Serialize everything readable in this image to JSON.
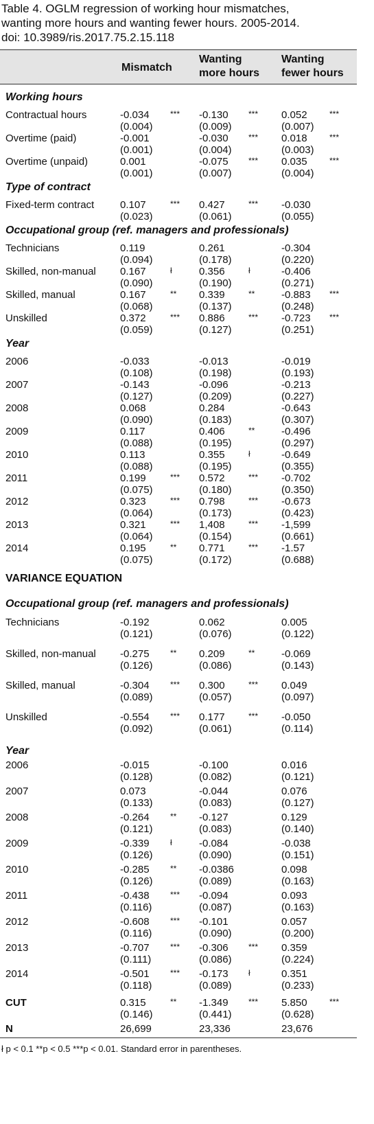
{
  "title": [
    "Table 4. OGLM regression of working hour mismatches,",
    "wanting more hours and wanting fewer hours. 2005-2014.",
    "doi: 10.3989/ris.2017.75.2.15.118"
  ],
  "columns": [
    [
      "Mismatch"
    ],
    [
      "Wanting",
      "more hours"
    ],
    [
      "Wanting",
      "fewer hours"
    ]
  ],
  "main": [
    {
      "heading": "Working hours",
      "rows": [
        {
          "label": "Contractual hours",
          "cells": [
            {
              "coef": "-0.034",
              "stars": "***",
              "se": "(0.004)"
            },
            {
              "coef": "-0.130",
              "stars": "***",
              "se": "(0.009)"
            },
            {
              "coef": "0.052",
              "stars": "***",
              "se": "(0.007)"
            }
          ]
        },
        {
          "label": "Overtime (paid)",
          "cells": [
            {
              "coef": "-0.001",
              "se": "(0.001)"
            },
            {
              "coef": "-0.030",
              "stars": "***",
              "se": "(0.004)"
            },
            {
              "coef": "0.018",
              "stars": "***",
              "se": "(0.003)"
            }
          ]
        },
        {
          "label": "Overtime (unpaid)",
          "cells": [
            {
              "coef": "0.001",
              "se": "(0.001)"
            },
            {
              "coef": "-0.075",
              "stars": "***",
              "se": "(0.007)"
            },
            {
              "coef": "0.035",
              "stars": "***",
              "se": "(0.004)"
            }
          ]
        }
      ]
    },
    {
      "heading": "Type of contract",
      "rows": [
        {
          "label": "Fixed-term contract",
          "cells": [
            {
              "coef": "0.107",
              "stars": "***",
              "se": "(0.023)"
            },
            {
              "coef": "0.427",
              "stars": "***",
              "se": "(0.061)"
            },
            {
              "coef": "-0.030",
              "se": "(0.055)"
            }
          ]
        }
      ]
    },
    {
      "heading": "Occupational group (ref. managers and professionals)",
      "rows": [
        {
          "label": "Technicians",
          "cells": [
            {
              "coef": "0.119",
              "se": "(0.094)"
            },
            {
              "coef": "0.261",
              "se": "(0.178)"
            },
            {
              "coef": "-0.304",
              "se": "(0.220)"
            }
          ]
        },
        {
          "label": "Skilled, non-manual",
          "cells": [
            {
              "coef": "0.167",
              "stars": "ł",
              "se": "(0.090)"
            },
            {
              "coef": "0.356",
              "stars": "ł",
              "se": "(0.190)"
            },
            {
              "coef": "-0.406",
              "se": "(0.271)"
            }
          ]
        },
        {
          "label": "Skilled, manual",
          "cells": [
            {
              "coef": "0.167",
              "stars": "**",
              "se": "(0.068)"
            },
            {
              "coef": "0.339",
              "stars": "**",
              "se": "(0.137)"
            },
            {
              "coef": "-0.883",
              "stars": "***",
              "se": "(0.248)"
            }
          ]
        },
        {
          "label": "Unskilled",
          "cells": [
            {
              "coef": "0.372",
              "stars": "***",
              "se": "(0.059)"
            },
            {
              "coef": "0.886",
              "stars": "***",
              "se": "(0.127)"
            },
            {
              "coef": "-0.723",
              "stars": "***",
              "se": "(0.251)"
            }
          ]
        }
      ]
    },
    {
      "heading": "Year",
      "rows": [
        {
          "label": "2006",
          "cells": [
            {
              "coef": "-0.033",
              "se": "(0.108)"
            },
            {
              "coef": "-0.013",
              "se": "(0.198)"
            },
            {
              "coef": "-0.019",
              "se": "(0.193)"
            }
          ]
        },
        {
          "label": "2007",
          "cells": [
            {
              "coef": "-0.143",
              "se": "(0.127)"
            },
            {
              "coef": "-0.096",
              "se": "(0.209)"
            },
            {
              "coef": "-0.213",
              "se": "(0.227)"
            }
          ]
        },
        {
          "label": "2008",
          "cells": [
            {
              "coef": "0.068",
              "se": "(0.090)"
            },
            {
              "coef": "0.284",
              "se": "(0.183)"
            },
            {
              "coef": "-0.643",
              "se": "(0.307)"
            }
          ]
        },
        {
          "label": "2009",
          "cells": [
            {
              "coef": "0.117",
              "se": "(0.088)"
            },
            {
              "coef": "0.406",
              "stars": "**",
              "se": "(0.195)"
            },
            {
              "coef": "-0.496",
              "se": "(0.297)"
            }
          ]
        },
        {
          "label": "2010",
          "cells": [
            {
              "coef": "0.113",
              "se": "(0.088)"
            },
            {
              "coef": "0.355",
              "stars": "ł",
              "se": "(0.195)"
            },
            {
              "coef": "-0.649",
              "se": "(0.355)"
            }
          ]
        },
        {
          "label": "2011",
          "cells": [
            {
              "coef": "0.199",
              "stars": "***",
              "se": "(0.075)"
            },
            {
              "coef": "0.572",
              "stars": "***",
              "se": "(0.180)"
            },
            {
              "coef": "-0.702",
              "se": "(0.350)"
            }
          ]
        },
        {
          "label": "2012",
          "cells": [
            {
              "coef": "0.323",
              "stars": "***",
              "se": "(0.064)"
            },
            {
              "coef": "0.798",
              "stars": "***",
              "se": "(0.173)"
            },
            {
              "coef": "-0.673",
              "se": "(0.423)"
            }
          ]
        },
        {
          "label": "2013",
          "cells": [
            {
              "coef": "0.321",
              "stars": "***",
              "se": "(0.064)"
            },
            {
              "coef": "1,408",
              "stars": "***",
              "se": "(0.154)"
            },
            {
              "coef": "-1,599",
              "se": "(0.661)"
            }
          ]
        },
        {
          "label": "2014",
          "cells": [
            {
              "coef": "0.195",
              "stars": "**",
              "se": "(0.075)"
            },
            {
              "coef": "0.771",
              "stars": "***",
              "se": "(0.172)"
            },
            {
              "coef": "-1.57",
              "se": "(0.688)"
            }
          ]
        }
      ]
    }
  ],
  "variance": {
    "title": "VARIANCE EQUATION",
    "blocks": [
      {
        "heading": "Occupational group (ref. managers and professionals)",
        "rows": [
          {
            "label": "Technicians",
            "cells": [
              {
                "coef": "-0.192",
                "se": "(0.121)"
              },
              {
                "coef": "0.062",
                "se": "(0.076)"
              },
              {
                "coef": "0.005",
                "se": "(0.122)"
              }
            ]
          },
          {
            "label": "Skilled, non-manual",
            "cells": [
              {
                "coef": "-0.275",
                "stars": "**",
                "se": "(0.126)"
              },
              {
                "coef": "0.209",
                "stars": "**",
                "se": "(0.086)"
              },
              {
                "coef": "-0.069",
                "se": "(0.143)"
              }
            ]
          },
          {
            "label": "Skilled, manual",
            "cells": [
              {
                "coef": "-0.304",
                "stars": "***",
                "se": "(0.089)"
              },
              {
                "coef": "0.300",
                "stars": "***",
                "se": "(0.057)"
              },
              {
                "coef": "0.049",
                "se": "(0.097)"
              }
            ]
          },
          {
            "label": "Unskilled",
            "cells": [
              {
                "coef": "-0.554",
                "stars": "***",
                "se": "(0.092)"
              },
              {
                "coef": "0.177",
                "stars": "***",
                "se": "(0.061)"
              },
              {
                "coef": "-0.050",
                "se": "(0.114)"
              }
            ]
          }
        ]
      },
      {
        "heading": "Year",
        "rows": [
          {
            "label": "2006",
            "cells": [
              {
                "coef": "-0.015",
                "se": "(0.128)"
              },
              {
                "coef": "-0.100",
                "se": "(0.082)"
              },
              {
                "coef": "0.016",
                "se": "(0.121)"
              }
            ]
          },
          {
            "label": "2007",
            "cells": [
              {
                "coef": "0.073",
                "se": "(0.133)"
              },
              {
                "coef": "-0.044",
                "se": "(0.083)"
              },
              {
                "coef": "0.076",
                "se": "(0.127)"
              }
            ]
          },
          {
            "label": "2008",
            "cells": [
              {
                "coef": "-0.264",
                "stars": "**",
                "se": "(0.121)"
              },
              {
                "coef": "-0.127",
                "se": "(0.083)"
              },
              {
                "coef": "0.129",
                "se": "(0.140)"
              }
            ]
          },
          {
            "label": "2009",
            "cells": [
              {
                "coef": "-0.339",
                "stars": "ł",
                "se": "(0.126)"
              },
              {
                "coef": "-0.084",
                "se": "(0.090)"
              },
              {
                "coef": "-0.038",
                "se": "(0.151)"
              }
            ]
          },
          {
            "label": "2010",
            "cells": [
              {
                "coef": "-0.285",
                "stars": "**",
                "se": "(0.126)"
              },
              {
                "coef": "-0.0386",
                "se": "(0.089)"
              },
              {
                "coef": "0.098",
                "se": "(0.163)"
              }
            ]
          },
          {
            "label": "2011",
            "cells": [
              {
                "coef": "-0.438",
                "stars": "***",
                "se": "(0.116)"
              },
              {
                "coef": "-0.094",
                "se": "(0.087)"
              },
              {
                "coef": "0.093",
                "se": "(0.163)"
              }
            ]
          },
          {
            "label": "2012",
            "cells": [
              {
                "coef": "-0.608",
                "stars": "***",
                "se": "(0.116)"
              },
              {
                "coef": "-0.101",
                "se": "(0.090)"
              },
              {
                "coef": "0.057",
                "se": "(0.200)"
              }
            ]
          },
          {
            "label": "2013",
            "cells": [
              {
                "coef": "-0.707",
                "stars": "***",
                "se": "(0.111)"
              },
              {
                "coef": "-0.306",
                "stars": "***",
                "se": "(0.086)"
              },
              {
                "coef": "0.359",
                "se": "(0.224)"
              }
            ]
          },
          {
            "label": "2014",
            "cells": [
              {
                "coef": "-0.501",
                "stars": "***",
                "se": "(0.118)"
              },
              {
                "coef": "-0.173",
                "stars": "ł",
                "se": "(0.089)"
              },
              {
                "coef": "0.351",
                "se": "(0.233)"
              }
            ]
          }
        ]
      }
    ]
  },
  "cut": {
    "label": "CUT",
    "cells": [
      {
        "coef": "0.315",
        "stars": "**",
        "se": "(0.146)"
      },
      {
        "coef": "-1.349",
        "stars": "***",
        "se": "(0.441)"
      },
      {
        "coef": "5.850",
        "stars": "***",
        "se": "(0.628)"
      }
    ]
  },
  "n": {
    "label": "N",
    "cells": [
      {
        "coef": "26,699"
      },
      {
        "coef": "23,336"
      },
      {
        "coef": "23,676"
      }
    ]
  },
  "footnote": "ł p < 0.1 **p < 0.5 ***p < 0.01. Standard error in parentheses."
}
